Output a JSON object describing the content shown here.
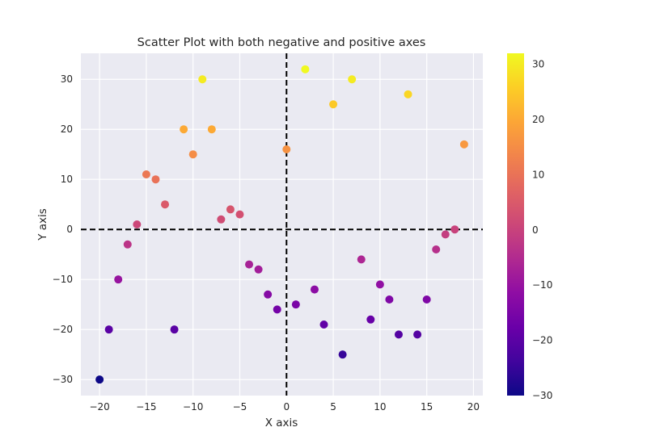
{
  "chart_data": {
    "type": "scatter",
    "title": "Scatter Plot with both negative and positive axes",
    "xlabel": "X axis",
    "ylabel": "Y axis",
    "xlim": [
      -22,
      21
    ],
    "ylim": [
      -33.2,
      35.2
    ],
    "xticks": [
      -20,
      -15,
      -10,
      -5,
      0,
      5,
      10,
      15,
      20
    ],
    "xtick_labels": [
      "−20",
      "−15",
      "−10",
      "−5",
      "0",
      "5",
      "10",
      "15",
      "20"
    ],
    "yticks": [
      -30,
      -20,
      -10,
      0,
      10,
      20,
      30
    ],
    "ytick_labels": [
      "−30",
      "−20",
      "−10",
      "0",
      "10",
      "20",
      "30"
    ],
    "grid": true,
    "reference_lines": [
      {
        "orientation": "horizontal",
        "value": 0,
        "style": "dashed",
        "color": "#000000"
      },
      {
        "orientation": "vertical",
        "value": 0,
        "style": "dashed",
        "color": "#000000"
      }
    ],
    "colormap": "plasma",
    "color_by": "y",
    "colorbar": {
      "range": [
        -30,
        32
      ],
      "ticks": [
        -30,
        -20,
        -10,
        0,
        10,
        20,
        30
      ],
      "tick_labels": [
        "−30",
        "−20",
        "−10",
        "0",
        "10",
        "20",
        "30"
      ],
      "placement": "right"
    },
    "points": [
      {
        "x": -20,
        "y": -30
      },
      {
        "x": -19,
        "y": -20
      },
      {
        "x": -18,
        "y": -10
      },
      {
        "x": -17,
        "y": -3
      },
      {
        "x": -16,
        "y": 1
      },
      {
        "x": -15,
        "y": 11
      },
      {
        "x": -14,
        "y": 10
      },
      {
        "x": -13,
        "y": 5
      },
      {
        "x": -12,
        "y": -20
      },
      {
        "x": -11,
        "y": 20
      },
      {
        "x": -10,
        "y": 15
      },
      {
        "x": -9,
        "y": 30
      },
      {
        "x": -8,
        "y": 20
      },
      {
        "x": -7,
        "y": 2
      },
      {
        "x": -6,
        "y": 4
      },
      {
        "x": -5,
        "y": 3
      },
      {
        "x": -4,
        "y": -7
      },
      {
        "x": -3,
        "y": -8
      },
      {
        "x": -2,
        "y": -13
      },
      {
        "x": -1,
        "y": -16
      },
      {
        "x": 0,
        "y": 16
      },
      {
        "x": 1,
        "y": -15
      },
      {
        "x": 2,
        "y": 32
      },
      {
        "x": 3,
        "y": -12
      },
      {
        "x": 4,
        "y": -19
      },
      {
        "x": 5,
        "y": 25
      },
      {
        "x": 6,
        "y": -25
      },
      {
        "x": 7,
        "y": 30
      },
      {
        "x": 8,
        "y": -6
      },
      {
        "x": 9,
        "y": -18
      },
      {
        "x": 10,
        "y": -11
      },
      {
        "x": 11,
        "y": -14
      },
      {
        "x": 12,
        "y": -21
      },
      {
        "x": 13,
        "y": 27
      },
      {
        "x": 14,
        "y": -21
      },
      {
        "x": 15,
        "y": -14
      },
      {
        "x": 16,
        "y": -4
      },
      {
        "x": 17,
        "y": -1
      },
      {
        "x": 18,
        "y": 0
      },
      {
        "x": 19,
        "y": 17
      }
    ]
  },
  "colors": {
    "plot_background": "#eaeaf2",
    "grid": "#ffffff",
    "reference_line": "#000000",
    "text": "#262626"
  }
}
